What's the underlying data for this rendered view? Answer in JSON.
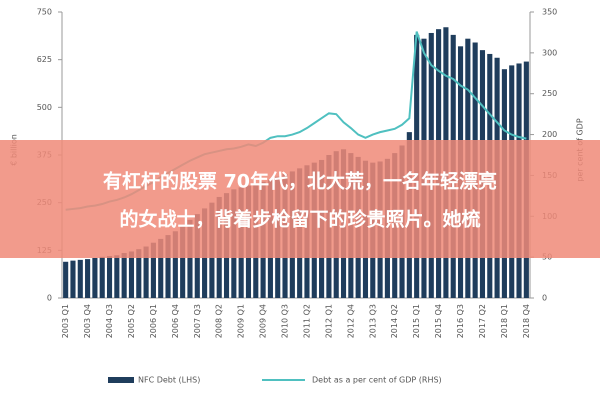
{
  "chart_data": {
    "type": "bar-line",
    "y_label": "€ billion",
    "y2_label": "per cent of GDP",
    "categories": [
      "2003 Q1",
      null,
      null,
      "2003 Q4",
      null,
      null,
      "2004 Q3",
      null,
      null,
      "2005 Q2",
      null,
      null,
      "2006 Q1",
      null,
      null,
      "2006 Q4",
      null,
      null,
      "2007 Q3",
      null,
      null,
      "2008 Q2",
      null,
      null,
      "2009 Q1",
      null,
      null,
      "2009 Q4",
      null,
      null,
      "2010 Q3",
      null,
      null,
      "2011 Q2",
      null,
      null,
      "2012 Q1",
      null,
      null,
      "2012 Q4",
      null,
      null,
      "2013 Q3",
      null,
      null,
      "2014 Q2",
      null,
      null,
      "2015 Q1",
      null,
      null,
      "2015 Q4",
      null,
      null,
      "2016 Q3",
      null,
      null,
      "2017 Q2",
      null,
      null,
      "2018 Q1",
      null,
      null,
      "2018 Q4"
    ],
    "series": [
      {
        "name": "NFC Debt (LHS)",
        "color": "#1f3d5c",
        "type": "bar",
        "values": [
          95,
          98,
          100,
          102,
          105,
          108,
          110,
          112,
          118,
          122,
          128,
          135,
          145,
          155,
          165,
          175,
          190,
          205,
          220,
          235,
          250,
          265,
          275,
          285,
          290,
          295,
          300,
          305,
          310,
          318,
          325,
          332,
          340,
          348,
          355,
          362,
          375,
          385,
          390,
          380,
          370,
          360,
          355,
          358,
          365,
          380,
          400,
          435,
          690,
          680,
          695,
          705,
          710,
          690,
          660,
          680,
          670,
          650,
          640,
          630,
          600,
          610,
          615,
          620
        ]
      },
      {
        "name": "Debt as a per cent of GDP (RHS)",
        "color": "#4fc0c0",
        "type": "line",
        "axis": "y2",
        "values": [
          108,
          109,
          110,
          112,
          113,
          115,
          118,
          120,
          123,
          127,
          132,
          137,
          142,
          148,
          153,
          158,
          163,
          168,
          172,
          176,
          178,
          180,
          182,
          183,
          185,
          188,
          186,
          190,
          196,
          198,
          198,
          200,
          203,
          208,
          214,
          220,
          226,
          225,
          215,
          208,
          200,
          196,
          200,
          203,
          205,
          207,
          212,
          220,
          326,
          300,
          285,
          278,
          272,
          268,
          260,
          255,
          245,
          235,
          225,
          215,
          205,
          200,
          197,
          195
        ]
      }
    ],
    "ylim": [
      0,
      750
    ],
    "yticks": [
      0,
      125,
      250,
      375,
      500,
      625,
      750
    ],
    "y2lim": [
      0,
      350
    ],
    "y2ticks": [
      0,
      50,
      100,
      150,
      200,
      250,
      300,
      350
    ],
    "grid": false
  },
  "banner": {
    "lines": [
      "有杠杆的股票 70年代，北大荒，一名年轻漂亮",
      "的女战士，背着步枪留下的珍贵照片。她梳"
    ]
  }
}
